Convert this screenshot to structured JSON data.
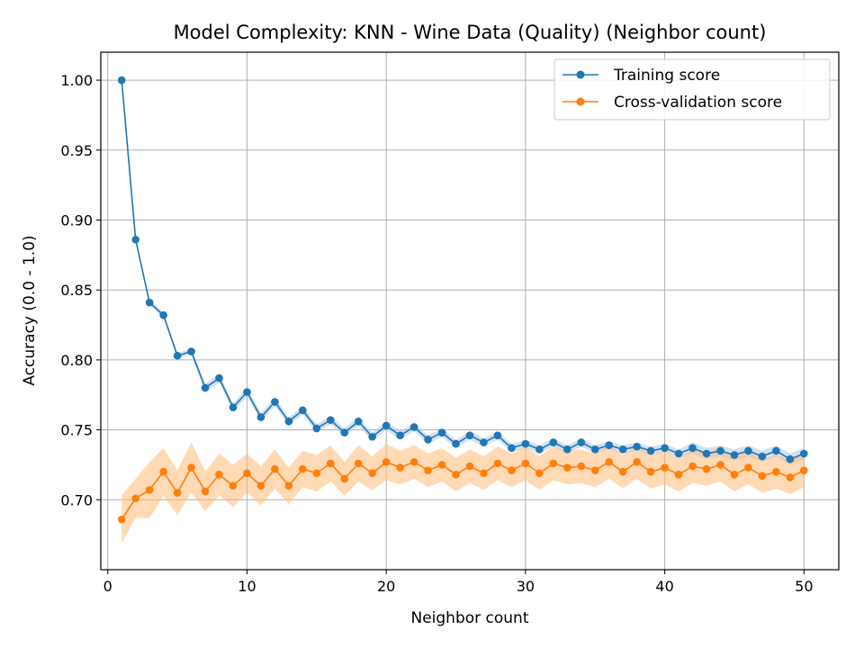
{
  "chart_data": {
    "type": "line",
    "title": "Model Complexity: KNN - Wine Data (Quality) (Neighbor count)",
    "xlabel": "Neighbor count",
    "ylabel": "Accuracy (0.0 - 1.0)",
    "xlim": [
      -0.5,
      52.5
    ],
    "ylim": [
      0.65,
      1.02
    ],
    "xticks": [
      0,
      10,
      20,
      30,
      40,
      50
    ],
    "yticks": [
      0.7,
      0.75,
      0.8,
      0.85,
      0.9,
      0.95,
      1.0
    ],
    "xtick_labels": [
      "0",
      "10",
      "20",
      "30",
      "40",
      "50"
    ],
    "ytick_labels": [
      "0.70",
      "0.75",
      "0.80",
      "0.85",
      "0.90",
      "0.95",
      "1.00"
    ],
    "grid": true,
    "legend_position": "top-right",
    "x": [
      1,
      2,
      3,
      4,
      5,
      6,
      7,
      8,
      9,
      10,
      11,
      12,
      13,
      14,
      15,
      16,
      17,
      18,
      19,
      20,
      21,
      22,
      23,
      24,
      25,
      26,
      27,
      28,
      29,
      30,
      31,
      32,
      33,
      34,
      35,
      36,
      37,
      38,
      39,
      40,
      41,
      42,
      43,
      44,
      45,
      46,
      47,
      48,
      49,
      50
    ],
    "series": [
      {
        "name": "Training score",
        "color": "#1f77b4",
        "band_color": "#aec7e8",
        "values": [
          1.0,
          0.886,
          0.841,
          0.832,
          0.803,
          0.806,
          0.78,
          0.787,
          0.766,
          0.777,
          0.759,
          0.77,
          0.756,
          0.764,
          0.751,
          0.757,
          0.748,
          0.756,
          0.745,
          0.753,
          0.746,
          0.752,
          0.743,
          0.748,
          0.74,
          0.746,
          0.741,
          0.746,
          0.737,
          0.74,
          0.736,
          0.741,
          0.736,
          0.741,
          0.736,
          0.739,
          0.736,
          0.738,
          0.735,
          0.737,
          0.733,
          0.737,
          0.733,
          0.735,
          0.732,
          0.735,
          0.731,
          0.735,
          0.729,
          0.733
        ],
        "band": [
          0.001,
          0.001,
          0.002,
          0.002,
          0.002,
          0.002,
          0.003,
          0.003,
          0.003,
          0.003,
          0.003,
          0.003,
          0.003,
          0.003,
          0.003,
          0.003,
          0.003,
          0.003,
          0.003,
          0.003,
          0.003,
          0.003,
          0.003,
          0.003,
          0.003,
          0.003,
          0.003,
          0.003,
          0.003,
          0.003,
          0.003,
          0.003,
          0.003,
          0.003,
          0.003,
          0.003,
          0.003,
          0.003,
          0.003,
          0.003,
          0.003,
          0.004,
          0.004,
          0.004,
          0.004,
          0.004,
          0.004,
          0.004,
          0.004,
          0.004
        ]
      },
      {
        "name": "Cross-validation score",
        "color": "#ff7f0e",
        "band_color": "#ffbb78",
        "values": [
          0.686,
          0.701,
          0.707,
          0.72,
          0.705,
          0.723,
          0.706,
          0.718,
          0.71,
          0.719,
          0.71,
          0.722,
          0.71,
          0.722,
          0.719,
          0.726,
          0.715,
          0.726,
          0.719,
          0.727,
          0.723,
          0.727,
          0.721,
          0.725,
          0.718,
          0.724,
          0.719,
          0.726,
          0.721,
          0.726,
          0.719,
          0.726,
          0.723,
          0.724,
          0.721,
          0.727,
          0.72,
          0.727,
          0.72,
          0.723,
          0.718,
          0.724,
          0.722,
          0.725,
          0.718,
          0.723,
          0.717,
          0.72,
          0.716,
          0.721
        ],
        "band": [
          0.017,
          0.014,
          0.02,
          0.017,
          0.016,
          0.018,
          0.014,
          0.015,
          0.015,
          0.014,
          0.014,
          0.014,
          0.013,
          0.013,
          0.013,
          0.013,
          0.012,
          0.013,
          0.012,
          0.013,
          0.012,
          0.012,
          0.012,
          0.012,
          0.012,
          0.012,
          0.012,
          0.012,
          0.012,
          0.012,
          0.012,
          0.012,
          0.012,
          0.012,
          0.012,
          0.012,
          0.012,
          0.012,
          0.012,
          0.012,
          0.012,
          0.012,
          0.012,
          0.012,
          0.012,
          0.012,
          0.012,
          0.012,
          0.012,
          0.012
        ]
      }
    ]
  }
}
